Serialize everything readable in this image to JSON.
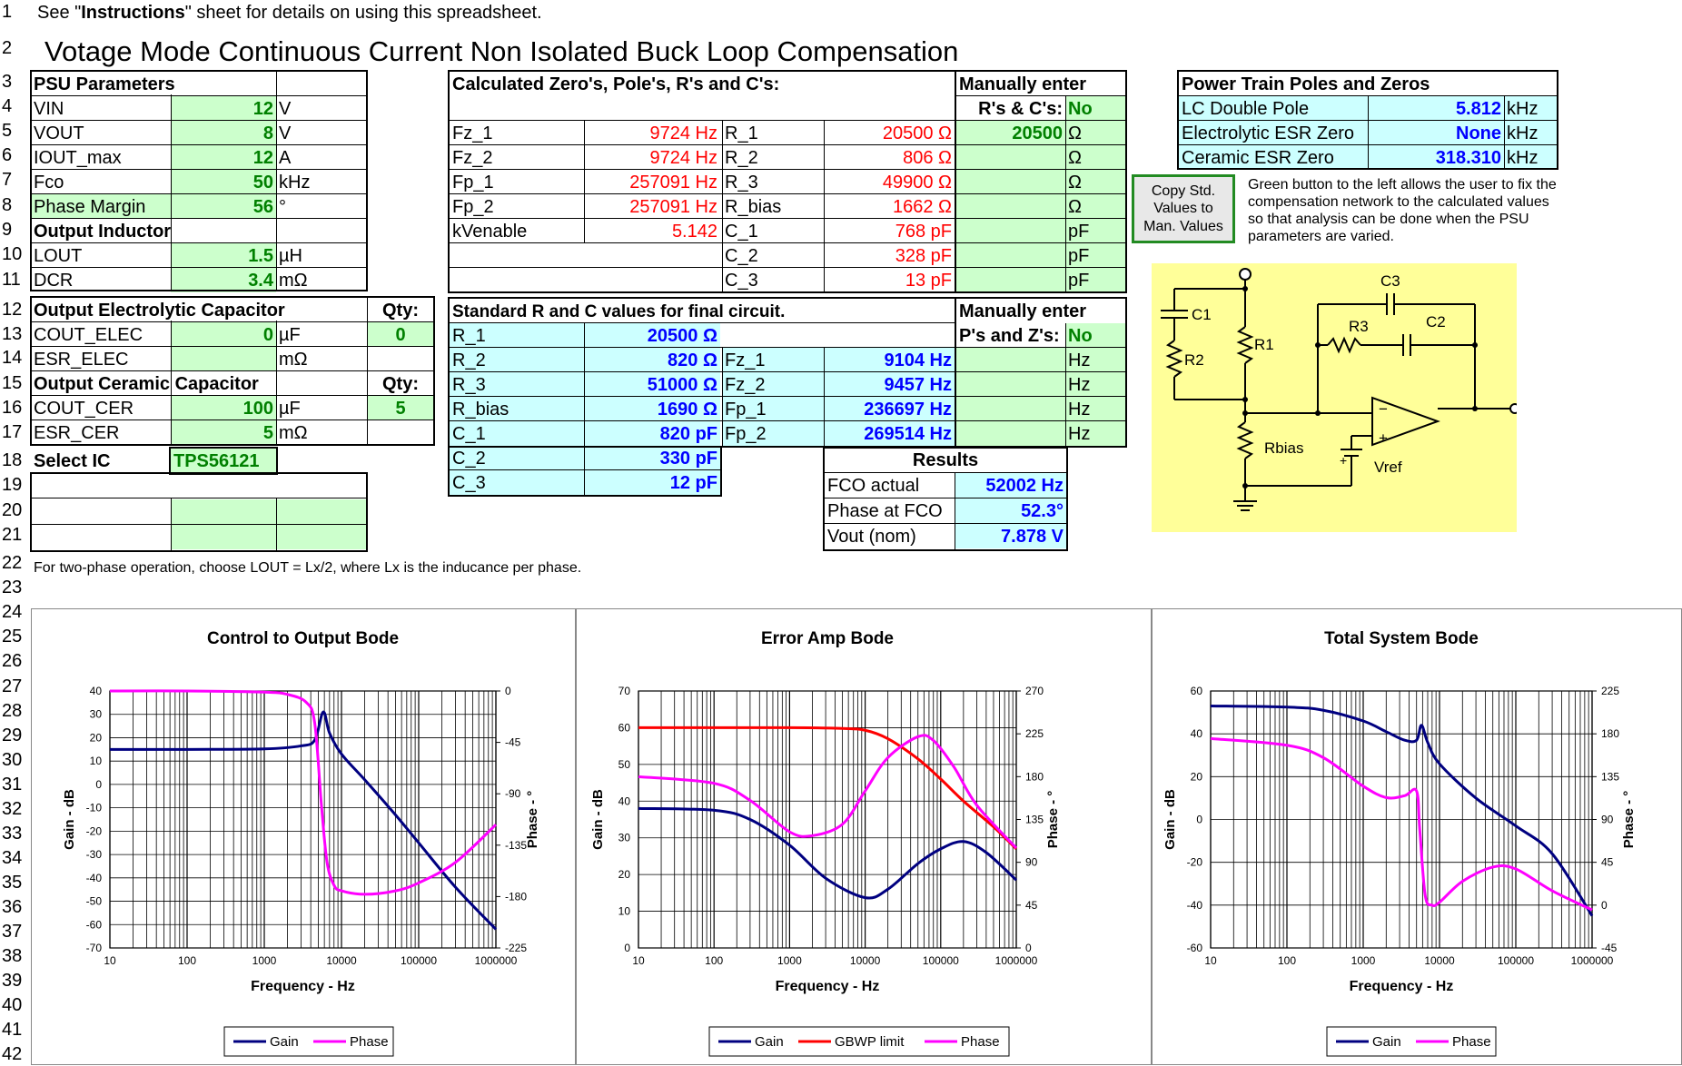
{
  "rows": [
    "1",
    "2",
    "3",
    "4",
    "5",
    "6",
    "7",
    "8",
    "9",
    "10",
    "11",
    "12",
    "13",
    "14",
    "15",
    "16",
    "17",
    "18",
    "19",
    "20",
    "21",
    "22",
    "23",
    "24",
    "25",
    "26",
    "27",
    "28",
    "29",
    "30",
    "31",
    "32",
    "33",
    "34",
    "35",
    "36",
    "37",
    "38",
    "39",
    "40",
    "41",
    "42"
  ],
  "notes": {
    "see_pre": "See \"",
    "see_bold": "Instructions",
    "see_post": "\" sheet for details on using this spreadsheet.",
    "title": "Votage Mode Continuous Current Non Isolated Buck Loop Compensation",
    "two_phase": "For two-phase operation, choose LOUT = Lx/2, where Lx is the inducance per phase.",
    "green_button": "Green button to the left allows the user to fix the compensation network to the calculated values so that analysis can be done when the PSU parameters are varied."
  },
  "psu": {
    "header": "PSU Parameters",
    "vin": {
      "label": "VIN",
      "value": "12",
      "unit": "V"
    },
    "vout": {
      "label": "VOUT",
      "value": "8",
      "unit": "V"
    },
    "iout": {
      "label": "IOUT_max",
      "value": "12",
      "unit": "A"
    },
    "fco": {
      "label": "Fco",
      "value": "50",
      "unit": "kHz"
    },
    "pm": {
      "label": "Phase Margin",
      "value": "56",
      "unit": "°"
    },
    "inductor_header": "Output Inductor",
    "lout": {
      "label": "LOUT",
      "value": "1.5",
      "unit": "µH"
    },
    "dcr": {
      "label": "DCR",
      "value": "3.4",
      "unit": "mΩ"
    },
    "elec_header": "Output Electrolytic Capacitor",
    "qty_label": "Qty:",
    "cout_elec": {
      "label": "COUT_ELEC",
      "value": "0",
      "unit": "µF",
      "qty": "0"
    },
    "esr_elec": {
      "label": "ESR_ELEC",
      "value": "",
      "unit": "mΩ"
    },
    "cer_header": "Output Ceramic Capacitor",
    "cout_cer": {
      "label": "COUT_CER",
      "value": "100",
      "unit": "µF",
      "qty": "5"
    },
    "esr_cer": {
      "label": "ESR_CER",
      "value": "5",
      "unit": "mΩ"
    },
    "select_ic": {
      "label": "Select IC",
      "value": "TPS56121"
    }
  },
  "calc": {
    "header": "Calculated Zero's, Pole's, R's and C's:",
    "fz1": {
      "label": "Fz_1",
      "value": "9724 Hz"
    },
    "fz2": {
      "label": "Fz_2",
      "value": "9724 Hz"
    },
    "fp1": {
      "label": "Fp_1",
      "value": "257091 Hz"
    },
    "fp2": {
      "label": "Fp_2",
      "value": "257091 Hz"
    },
    "kv": {
      "label": "kVenable",
      "value": "5.142"
    },
    "r1": {
      "label": "R_1",
      "value": "20500 Ω"
    },
    "r2": {
      "label": "R_2",
      "value": "806 Ω"
    },
    "r3": {
      "label": "R_3",
      "value": "49900 Ω"
    },
    "rbias": {
      "label": "R_bias",
      "value": "1662 Ω"
    },
    "c1": {
      "label": "C_1",
      "value": "768 pF"
    },
    "c2": {
      "label": "C_2",
      "value": "328 pF"
    },
    "c3": {
      "label": "C_3",
      "value": "13 pF"
    }
  },
  "manual_rc": {
    "header1": "Manually enter",
    "header2": "R's & C's:",
    "flag": "No",
    "r1": "20500",
    "units": [
      "Ω",
      "Ω",
      "Ω",
      "Ω",
      "pF",
      "pF",
      "pF"
    ]
  },
  "std": {
    "header": "Standard R and C values for final circuit.",
    "r1": {
      "label": "R_1",
      "value": "20500 Ω"
    },
    "r2": {
      "label": "R_2",
      "value": "820 Ω"
    },
    "r3": {
      "label": "R_3",
      "value": "51000 Ω"
    },
    "rbias": {
      "label": "R_bias",
      "value": "1690 Ω"
    },
    "c1": {
      "label": "C_1",
      "value": "820 pF"
    },
    "c2": {
      "label": "C_2",
      "value": "330 pF"
    },
    "c3": {
      "label": "C_3",
      "value": "12 pF"
    },
    "fz1": {
      "label": "Fz_1",
      "value": "9104 Hz"
    },
    "fz2": {
      "label": "Fz_2",
      "value": "9457 Hz"
    },
    "fp1": {
      "label": "Fp_1",
      "value": "236697 Hz"
    },
    "fp2": {
      "label": "Fp_2",
      "value": "269514 Hz"
    }
  },
  "manual_pz": {
    "header1": "Manually enter",
    "header2": "P's and Z's:",
    "flag": "No",
    "units": [
      "Hz",
      "Hz",
      "Hz",
      "Hz"
    ]
  },
  "results": {
    "header": "Results",
    "fco": {
      "label": "FCO actual",
      "value": "52002 Hz"
    },
    "phase": {
      "label": "Phase at FCO",
      "value": "52.3°"
    },
    "vout": {
      "label": "Vout (nom)",
      "value": "7.878 V"
    }
  },
  "power_train": {
    "header": "Power Train Poles and Zeros",
    "lc": {
      "label": "LC Double Pole",
      "value": "5.812",
      "unit": "kHz"
    },
    "elec": {
      "label": "Electrolytic ESR Zero",
      "value": "None",
      "unit": "kHz"
    },
    "cer": {
      "label": "Ceramic ESR Zero",
      "value": "318.310",
      "unit": "kHz"
    }
  },
  "button": {
    "line1": "Copy Std.",
    "line2": "Values to",
    "line3": "Man. Values"
  },
  "schematic": {
    "c1": "C1",
    "c2": "C2",
    "c3": "C3",
    "r1": "R1",
    "r2": "R2",
    "r3": "R3",
    "rbias": "Rbias",
    "vref": "Vref",
    "minus": "−",
    "plus": "+",
    "bplus": "+"
  },
  "colors": {
    "gain": "#000080",
    "phase": "#ff00ff",
    "gbwp": "#ff0000",
    "input": "#ccffcc",
    "calc": "#ccffff",
    "schematic_bg": "#ffff99"
  },
  "chart_data": [
    {
      "type": "line",
      "title": "Control to Output Bode",
      "xlabel": "Frequency - Hz",
      "ylabel": "Gain - dB",
      "y2label": "Phase - °",
      "x_scale": "log",
      "xlim": [
        10,
        1000000
      ],
      "ylim": [
        -70,
        40
      ],
      "y2lim": [
        -225,
        0
      ],
      "x_ticks": [
        "10",
        "100",
        "1000",
        "10000",
        "100000",
        "1000000"
      ],
      "y_ticks": [
        "40",
        "30",
        "20",
        "10",
        "0",
        "-10",
        "-20",
        "-30",
        "-40",
        "-50",
        "-60",
        "-70"
      ],
      "y2_ticks": [
        "0",
        "-45",
        "-90",
        "-135",
        "-180",
        "-225"
      ],
      "legend": [
        "Gain",
        "Phase"
      ],
      "series": [
        {
          "name": "Gain",
          "axis": "left",
          "x": [
            10,
            100,
            1000,
            3000,
            4500,
            5800,
            7000,
            10000,
            20000,
            50000,
            100000,
            300000,
            1000000
          ],
          "values": [
            15,
            15,
            15.2,
            16.5,
            19,
            31,
            22,
            13,
            2,
            -13,
            -25,
            -44,
            -62
          ]
        },
        {
          "name": "Phase",
          "axis": "right",
          "x": [
            10,
            100,
            1000,
            2000,
            3500,
            4500,
            5500,
            6500,
            8000,
            10000,
            20000,
            50000,
            100000,
            300000,
            1000000
          ],
          "values": [
            0,
            0,
            -1,
            -3,
            -10,
            -28,
            -100,
            -150,
            -170,
            -175,
            -178,
            -175,
            -168,
            -150,
            -117
          ]
        }
      ]
    },
    {
      "type": "line",
      "title": "Error Amp Bode",
      "xlabel": "Frequency - Hz",
      "ylabel": "Gain - dB",
      "y2label": "Phase - °",
      "x_scale": "log",
      "xlim": [
        10,
        1000000
      ],
      "ylim": [
        0,
        70
      ],
      "y2lim": [
        0,
        270
      ],
      "x_ticks": [
        "10",
        "100",
        "1000",
        "10000",
        "100000",
        "1000000"
      ],
      "y_ticks": [
        "70",
        "60",
        "50",
        "40",
        "30",
        "20",
        "10",
        "0"
      ],
      "y2_ticks": [
        "270",
        "225",
        "180",
        "135",
        "90",
        "45",
        "0"
      ],
      "legend": [
        "Gain",
        "GBWP limit",
        "Phase"
      ],
      "series": [
        {
          "name": "Gain",
          "axis": "left",
          "x": [
            10,
            100,
            300,
            1000,
            3000,
            10000,
            20000,
            50000,
            100000,
            200000,
            400000,
            1000000
          ],
          "values": [
            38,
            37.5,
            35,
            28,
            19,
            13.7,
            16,
            23,
            27,
            29,
            26,
            18.5
          ]
        },
        {
          "name": "GBWP limit",
          "axis": "left",
          "x": [
            10,
            1000,
            5000,
            10000,
            20000,
            50000,
            100000,
            200000,
            500000,
            1000000
          ],
          "values": [
            60,
            60,
            59.8,
            59.3,
            57,
            51.5,
            46,
            40,
            33,
            27
          ]
        },
        {
          "name": "Phase",
          "axis": "right",
          "x": [
            10,
            100,
            300,
            1000,
            2000,
            5000,
            10000,
            20000,
            50000,
            80000,
            150000,
            300000,
            1000000
          ],
          "values": [
            180,
            173,
            155,
            122,
            118,
            130,
            165,
            200,
            222,
            218,
            190,
            150,
            105
          ]
        }
      ]
    },
    {
      "type": "line",
      "title": "Total System Bode",
      "xlabel": "Frequency - Hz",
      "ylabel": "Gain - dB",
      "y2label": "Phase - °",
      "x_scale": "log",
      "xlim": [
        10,
        1000000
      ],
      "ylim": [
        -60,
        60
      ],
      "y2lim": [
        -45,
        225
      ],
      "x_ticks": [
        "10",
        "100",
        "1000",
        "10000",
        "100000",
        "1000000"
      ],
      "y_ticks": [
        "60",
        "40",
        "20",
        "0",
        "-20",
        "-40",
        "-60"
      ],
      "y2_ticks": [
        "225",
        "180",
        "135",
        "90",
        "45",
        "0",
        "-45"
      ],
      "legend": [
        "Gain",
        "Phase"
      ],
      "series": [
        {
          "name": "Gain",
          "axis": "left",
          "x": [
            10,
            100,
            300,
            1000,
            2000,
            3500,
            5000,
            5800,
            7000,
            10000,
            30000,
            100000,
            300000,
            1000000
          ],
          "values": [
            53,
            52.5,
            51,
            46,
            41,
            37,
            37,
            44,
            36,
            26,
            10,
            -3,
            -16,
            -45
          ]
        },
        {
          "name": "Phase",
          "axis": "right",
          "x": [
            10,
            100,
            300,
            1000,
            2000,
            3500,
            5000,
            5500,
            6500,
            8000,
            10000,
            20000,
            50000,
            100000,
            300000,
            1000000
          ],
          "values": [
            175,
            168,
            155,
            125,
            113,
            115,
            120,
            80,
            10,
            0,
            3,
            25,
            40,
            38,
            15,
            -5
          ]
        }
      ]
    }
  ]
}
